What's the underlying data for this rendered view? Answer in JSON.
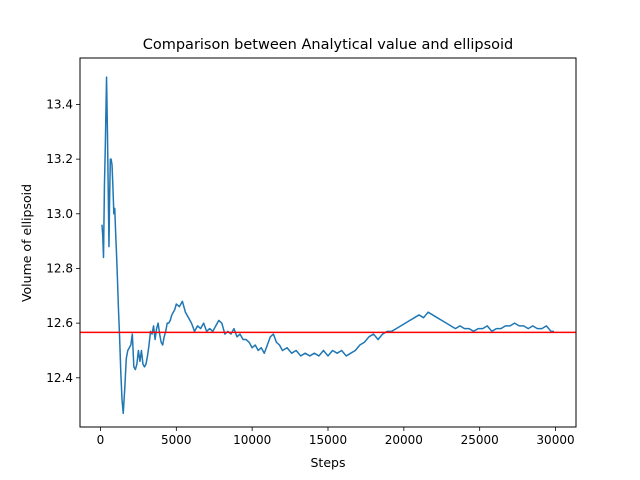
{
  "chart_data": {
    "type": "line",
    "title": "Comparison between Analytical value and ellipsoid",
    "xlabel": "Steps",
    "ylabel": "Volume of ellipsoid",
    "xlim": [
      -1350,
      31350
    ],
    "ylim": [
      12.22,
      13.57
    ],
    "xticks": [
      0,
      5000,
      10000,
      15000,
      20000,
      25000,
      30000
    ],
    "yticks": [
      12.4,
      12.6,
      12.8,
      13.0,
      13.2,
      13.4
    ],
    "grid": false,
    "series": [
      {
        "color": "#1f77b4",
        "x": [
          100,
          150,
          200,
          260,
          320,
          400,
          460,
          520,
          560,
          600,
          650,
          700,
          760,
          820,
          880,
          940,
          1000,
          1060,
          1120,
          1180,
          1260,
          1340,
          1420,
          1500,
          1600,
          1700,
          1800,
          1900,
          2000,
          2100,
          2200,
          2300,
          2400,
          2500,
          2600,
          2700,
          2800,
          2900,
          3000,
          3100,
          3200,
          3300,
          3400,
          3500,
          3600,
          3700,
          3800,
          3900,
          4000,
          4100,
          4200,
          4300,
          4400,
          4500,
          4600,
          4700,
          4800,
          4900,
          5000,
          5200,
          5400,
          5600,
          5800,
          6000,
          6200,
          6400,
          6600,
          6800,
          7000,
          7200,
          7400,
          7600,
          7800,
          8000,
          8200,
          8400,
          8600,
          8800,
          9000,
          9200,
          9400,
          9600,
          9800,
          10000,
          10200,
          10400,
          10600,
          10800,
          11000,
          11200,
          11400,
          11600,
          11800,
          12000,
          12300,
          12600,
          12900,
          13200,
          13500,
          13800,
          14100,
          14400,
          14700,
          15000,
          15300,
          15600,
          15900,
          16200,
          16500,
          16800,
          17100,
          17400,
          17700,
          18000,
          18300,
          18600,
          18900,
          19200,
          19500,
          19800,
          20100,
          20400,
          20700,
          21000,
          21300,
          21600,
          21900,
          22200,
          22500,
          22800,
          23100,
          23400,
          23700,
          24000,
          24300,
          24600,
          24900,
          25200,
          25500,
          25800,
          26100,
          26400,
          26700,
          27000,
          27300,
          27600,
          27900,
          28200,
          28500,
          28800,
          29100,
          29400,
          29700,
          29900
        ],
        "y": [
          12.96,
          12.92,
          12.84,
          13.1,
          13.25,
          13.5,
          13.3,
          13.05,
          12.88,
          13.05,
          13.2,
          13.2,
          13.18,
          13.1,
          13.0,
          13.02,
          12.93,
          12.85,
          12.76,
          12.66,
          12.55,
          12.42,
          12.32,
          12.27,
          12.36,
          12.47,
          12.5,
          12.51,
          12.52,
          12.56,
          12.44,
          12.43,
          12.45,
          12.5,
          12.46,
          12.5,
          12.45,
          12.44,
          12.45,
          12.48,
          12.52,
          12.57,
          12.56,
          12.59,
          12.54,
          12.58,
          12.6,
          12.56,
          12.53,
          12.52,
          12.55,
          12.57,
          12.6,
          12.6,
          12.61,
          12.63,
          12.64,
          12.65,
          12.67,
          12.66,
          12.68,
          12.64,
          12.62,
          12.6,
          12.57,
          12.59,
          12.58,
          12.6,
          12.57,
          12.58,
          12.57,
          12.59,
          12.61,
          12.6,
          12.56,
          12.57,
          12.56,
          12.58,
          12.55,
          12.56,
          12.54,
          12.54,
          12.53,
          12.51,
          12.52,
          12.5,
          12.51,
          12.49,
          12.52,
          12.55,
          12.56,
          12.53,
          12.52,
          12.5,
          12.51,
          12.49,
          12.5,
          12.48,
          12.49,
          12.48,
          12.49,
          12.48,
          12.5,
          12.48,
          12.5,
          12.49,
          12.5,
          12.48,
          12.49,
          12.5,
          12.52,
          12.53,
          12.55,
          12.56,
          12.54,
          12.56,
          12.57,
          12.57,
          12.58,
          12.59,
          12.6,
          12.61,
          12.62,
          12.63,
          12.62,
          12.64,
          12.63,
          12.62,
          12.61,
          12.6,
          12.59,
          12.58,
          12.59,
          12.58,
          12.58,
          12.57,
          12.58,
          12.58,
          12.59,
          12.57,
          12.58,
          12.58,
          12.59,
          12.59,
          12.6,
          12.59,
          12.59,
          12.58,
          12.59,
          12.58,
          12.58,
          12.59,
          12.57,
          12.57
        ]
      },
      {
        "type": "hline",
        "color": "#ff0000",
        "y": 12.566
      }
    ]
  }
}
